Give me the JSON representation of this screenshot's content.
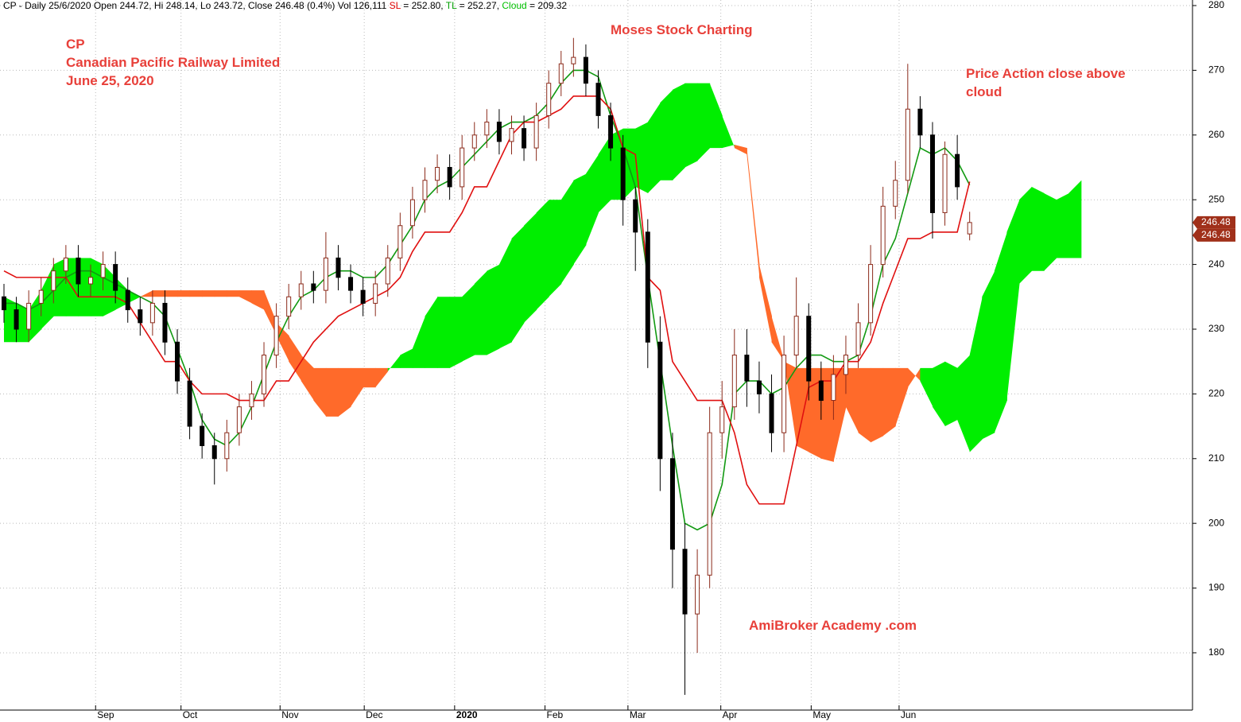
{
  "chart_data": {
    "type": "candlestick",
    "header": [
      "CP - Daily 25/6/2020 Open 244.72, Hi 248.14, Lo 243.72, Close 246.48 (0.4%) Vol 126,111 ",
      "SL",
      " = 252.80, ",
      "TL",
      " = 252.27, ",
      "Cloud",
      " = 209.32"
    ],
    "header_colors": [
      "#000000",
      "#e00000",
      "#000000",
      "#00a000",
      "#000000",
      "#00c000",
      "#000000"
    ],
    "annotations": {
      "symbol": "CP",
      "company": "Canadian Pacific Railway Limited",
      "date": "June 25, 2020",
      "brand": "Moses Stock Charting",
      "note_line1": "Price Action close above",
      "note_line2": "cloud",
      "site": "AmiBroker Academy .com"
    },
    "xlim": [
      0,
      96
    ],
    "xticks": [
      {
        "value": 7.4,
        "label": "Sep"
      },
      {
        "value": 14.3,
        "label": "Oct"
      },
      {
        "value": 22.3,
        "label": "Nov"
      },
      {
        "value": 29.1,
        "label": "Dec"
      },
      {
        "value": 36.4,
        "label": "2020"
      },
      {
        "value": 43.7,
        "label": "Feb"
      },
      {
        "value": 50.4,
        "label": "Mar"
      },
      {
        "value": 57.9,
        "label": "Apr"
      },
      {
        "value": 65.2,
        "label": "May"
      },
      {
        "value": 72.3,
        "label": "Jun"
      }
    ],
    "ylim": [
      171.15,
      280.86
    ],
    "yticks": [
      180,
      190,
      200,
      210,
      220,
      230,
      240,
      250,
      260,
      270,
      280
    ],
    "grid": true,
    "up_fill": "#ffffff",
    "up_stroke": "#8b2a1a",
    "down_fill": "#000000",
    "down_stroke": "#000000",
    "open": [
      235,
      233,
      230,
      234,
      236,
      239,
      241,
      237,
      238,
      240,
      236,
      233,
      231,
      234,
      228,
      222,
      215,
      212,
      210,
      214,
      218,
      220,
      226,
      232,
      235,
      237,
      236,
      241,
      238,
      236,
      234,
      237,
      241,
      246,
      250,
      253,
      255,
      252,
      258,
      260,
      262,
      259,
      261,
      258,
      263,
      268,
      271,
      272,
      268,
      263,
      258,
      250,
      245,
      228,
      210,
      196,
      186,
      192,
      214,
      218,
      226,
      222,
      220,
      214,
      226,
      232,
      222,
      219,
      223,
      226,
      231,
      240,
      249,
      253,
      264,
      260,
      248,
      257,
      244.72
    ],
    "high": [
      237,
      235,
      236,
      238,
      241,
      243,
      243,
      240,
      242,
      242,
      238,
      235,
      236,
      236,
      230,
      224,
      217,
      214,
      216,
      220,
      222,
      228,
      234,
      237,
      239,
      239,
      245,
      243,
      240,
      238,
      239,
      243,
      248,
      252,
      255,
      257,
      257,
      260,
      262,
      264,
      264,
      263,
      263,
      265,
      270,
      273,
      275,
      274,
      270,
      265,
      260,
      252,
      247,
      232,
      214,
      200,
      196,
      218,
      222,
      230,
      230,
      225,
      223,
      229,
      238,
      234,
      225,
      226,
      229,
      234,
      243,
      252,
      256,
      271,
      266,
      262,
      259,
      260,
      248.14
    ],
    "low": [
      231,
      228,
      228,
      232,
      234,
      237,
      235,
      235,
      236,
      234,
      231,
      229,
      229,
      226,
      220,
      213,
      210,
      206,
      208,
      212,
      216,
      218,
      224,
      230,
      233,
      234,
      234,
      236,
      234,
      232,
      232,
      235,
      239,
      244,
      248,
      251,
      250,
      250,
      256,
      258,
      257,
      257,
      256,
      256,
      261,
      266,
      269,
      266,
      261,
      256,
      246,
      239,
      224,
      205,
      190,
      173.5,
      180,
      190,
      210,
      216,
      218,
      217,
      211,
      211,
      224,
      219,
      216,
      216,
      220,
      224,
      229,
      238,
      247,
      251,
      258,
      244,
      246,
      250,
      243.72
    ],
    "close": [
      233,
      230,
      234,
      236,
      239,
      241,
      237,
      238,
      240,
      236,
      233,
      231,
      234,
      228,
      222,
      215,
      212,
      210,
      214,
      218,
      220,
      226,
      232,
      235,
      237,
      236,
      241,
      238,
      236,
      234,
      237,
      241,
      246,
      250,
      253,
      255,
      252,
      258,
      260,
      262,
      259,
      261,
      258,
      263,
      268,
      271,
      272,
      268,
      263,
      258,
      250,
      245,
      228,
      210,
      196,
      186,
      192,
      214,
      218,
      226,
      222,
      220,
      214,
      226,
      232,
      222,
      219,
      223,
      226,
      231,
      240,
      249,
      253,
      264,
      260,
      248,
      257,
      252,
      246.48
    ],
    "price_tags": [
      {
        "value": 246.48,
        "label": "246.48"
      },
      {
        "value": 246.48,
        "label": "246.48"
      }
    ],
    "price_tag_color": "#a0301a",
    "series": [
      {
        "name": "TL",
        "color": "#119911",
        "values": [
          234,
          234,
          233,
          234,
          236,
          238,
          239,
          239,
          238,
          237,
          236,
          235,
          234,
          232,
          227,
          222,
          216,
          213,
          212,
          214,
          218,
          223,
          228,
          232,
          235,
          236,
          238,
          239,
          239,
          238,
          238,
          240,
          243,
          246,
          250,
          252,
          253,
          255,
          257,
          259,
          261,
          262,
          262,
          263,
          265,
          268,
          270,
          270,
          269,
          263,
          258,
          252,
          238,
          225,
          212,
          200,
          199,
          200,
          206,
          220,
          222,
          222,
          220,
          221,
          224,
          226,
          226,
          225,
          225,
          226,
          232,
          240,
          244,
          251,
          258,
          257,
          258,
          256,
          252.27
        ]
      },
      {
        "name": "SL",
        "color": "#e01010",
        "values": [
          239,
          238,
          238,
          238,
          238,
          238,
          235,
          235,
          235,
          235,
          234,
          231,
          228,
          225,
          225,
          222,
          220,
          220,
          220,
          219,
          219,
          219,
          222,
          222,
          225,
          228,
          230,
          232,
          233,
          234,
          235,
          236,
          238,
          242,
          245,
          245,
          245,
          248,
          252,
          252,
          256,
          260,
          262,
          262,
          263,
          264,
          266,
          266,
          266,
          264,
          258,
          257,
          238,
          236,
          225,
          222,
          219,
          219,
          219,
          214,
          206,
          203,
          203,
          203,
          212,
          221,
          222,
          222,
          225,
          225,
          228,
          234,
          239,
          244,
          244,
          245,
          245,
          245,
          252.8
        ]
      }
    ],
    "cloud": {
      "up_color": "#00ee00",
      "down_color": "#ff6a2a",
      "span_a": [
        235,
        234,
        233,
        236,
        240,
        241,
        241,
        241,
        240,
        238,
        236,
        235,
        235,
        235,
        235,
        235,
        235,
        235,
        235,
        235,
        234,
        233,
        229,
        225,
        222,
        219,
        216.5,
        216.5,
        218,
        221,
        221,
        223.5,
        226,
        227,
        232,
        235,
        235,
        235,
        237,
        239,
        240,
        244,
        246,
        248,
        250,
        250,
        253,
        254,
        257,
        260,
        261,
        261,
        262,
        265,
        267,
        268,
        268,
        268,
        263,
        258,
        257,
        238,
        228,
        225,
        212,
        211,
        210,
        209.5,
        218,
        214,
        212.5,
        213.5,
        215,
        221,
        224,
        224,
        225,
        224,
        226,
        235,
        239,
        245,
        250,
        252,
        251,
        250,
        251,
        253
      ],
      "span_b": [
        228,
        228,
        228,
        230,
        232,
        232,
        232,
        232,
        232,
        233,
        234,
        235,
        236,
        236,
        236,
        236,
        236,
        236,
        236,
        236,
        236,
        236,
        231,
        229,
        226,
        224,
        224,
        224,
        224,
        224,
        224,
        224,
        224,
        224,
        224,
        224,
        224,
        225,
        226,
        226,
        227,
        228,
        231,
        233,
        235,
        237,
        240,
        243,
        248,
        250,
        250,
        252,
        251,
        253,
        253,
        255,
        256,
        258,
        258,
        258.5,
        258,
        240,
        232,
        225,
        224,
        224,
        224,
        224,
        224,
        224,
        224,
        224,
        224,
        224,
        222,
        218,
        215,
        216,
        211,
        213,
        214,
        219,
        237,
        239,
        239,
        241,
        241,
        241
      ]
    }
  }
}
